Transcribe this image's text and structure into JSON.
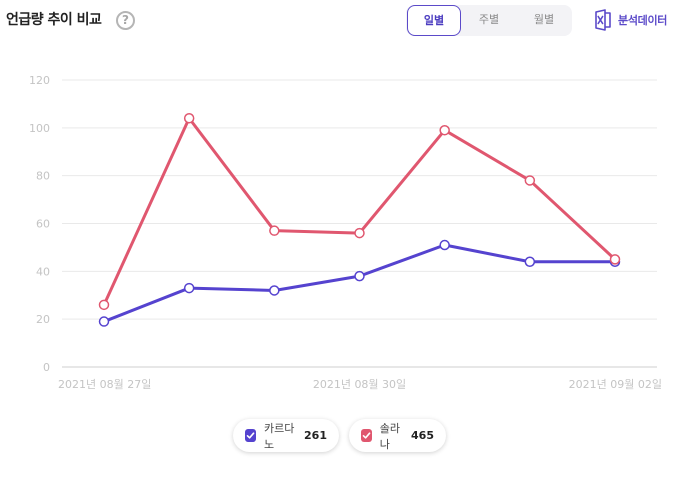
{
  "header": {
    "title": "언급량 추이 비교",
    "help_icon": "question-circle-icon"
  },
  "period_tabs": [
    {
      "label": "일별",
      "active": true
    },
    {
      "label": "주별",
      "active": false
    },
    {
      "label": "월별",
      "active": false
    }
  ],
  "export": {
    "label": "분석데이터",
    "icon": "excel-icon"
  },
  "chart_data": {
    "type": "line",
    "x": [
      "2021년 08월 27일",
      "2021년 08월 28일",
      "2021년 08월 29일",
      "2021년 08월 30일",
      "2021년 08월 31일",
      "2021년 09월 01일",
      "2021년 09월 02일"
    ],
    "x_tick_labels": [
      "2021년 08월 27일",
      "2021년 08월 30일",
      "2021년 09월 02일"
    ],
    "x_tick_indices": [
      0,
      3,
      6
    ],
    "ylim": [
      0,
      120
    ],
    "yticks": [
      0,
      20,
      40,
      60,
      80,
      100,
      120
    ],
    "grid": true,
    "legend_position": "bottom-center",
    "series": [
      {
        "name": "카르다노",
        "total": "261",
        "color": "#5543cf",
        "values": [
          19,
          33,
          32,
          38,
          51,
          44,
          44
        ]
      },
      {
        "name": "솔라나",
        "total": "465",
        "color": "#e0576f",
        "values": [
          26,
          104,
          57,
          56,
          99,
          78,
          45
        ]
      }
    ]
  }
}
